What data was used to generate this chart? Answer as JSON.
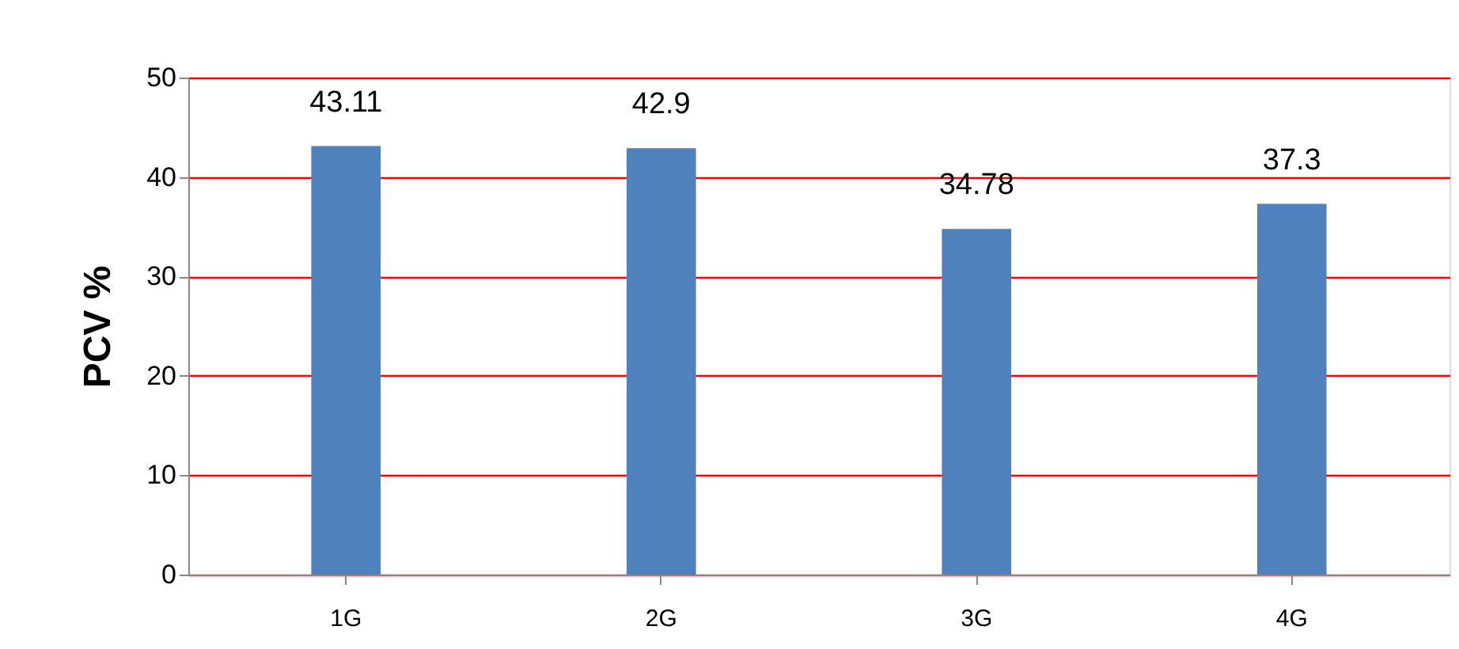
{
  "chart_data": {
    "type": "bar",
    "ylabel": "PCV %",
    "categories": [
      "1G",
      "2G",
      "3G",
      "4G"
    ],
    "values": [
      43.11,
      42.9,
      34.78,
      37.3
    ],
    "color": "#4f81bd",
    "ylim": [
      0,
      50
    ],
    "yticks": [
      0,
      10,
      20,
      30,
      40,
      50
    ],
    "grid": "y",
    "data_labels": true
  }
}
